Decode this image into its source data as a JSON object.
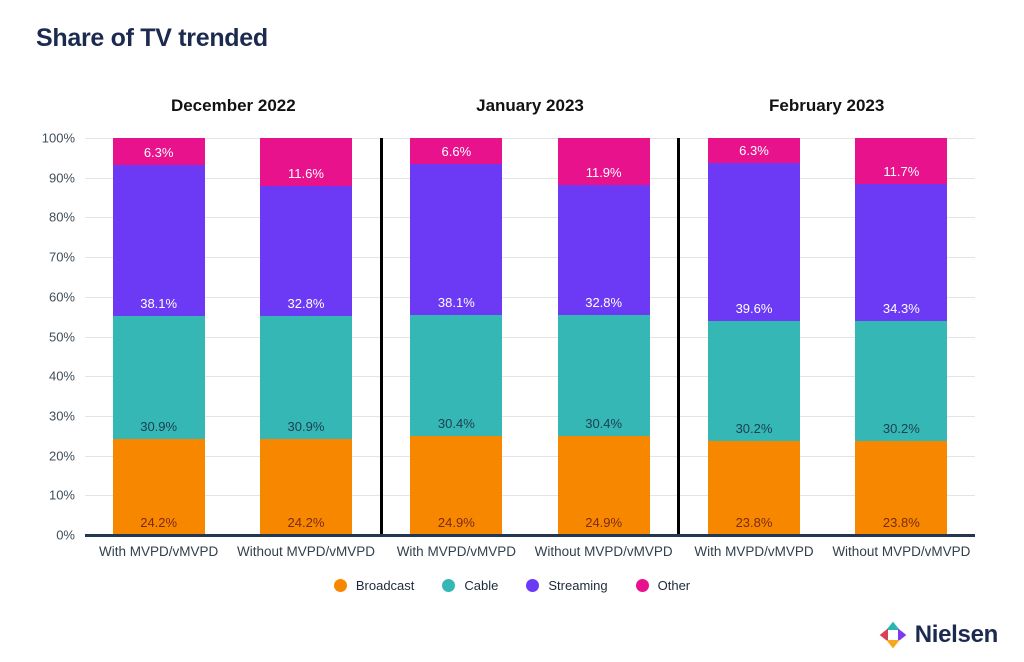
{
  "page": {
    "title": "Share of TV trended"
  },
  "chart_data": {
    "type": "bar",
    "stacked": true,
    "orientation": "vertical",
    "ylim": [
      0,
      100
    ],
    "y_ticks": [
      "100%",
      "90%",
      "80%",
      "70%",
      "60%",
      "50%",
      "40%",
      "30%",
      "20%",
      "10%",
      "0%"
    ],
    "grid": "horizontal",
    "series": [
      {
        "name": "Broadcast",
        "color": "#F88700",
        "label_color": "#7b2b10"
      },
      {
        "name": "Cable",
        "color": "#35B7B6",
        "label_color": "#1d4050"
      },
      {
        "name": "Streaming",
        "color": "#6C3AF5",
        "label_color": "#ffffff"
      },
      {
        "name": "Other",
        "color": "#E8128D",
        "label_color": "#ffffff"
      }
    ],
    "groups": [
      {
        "title": "December 2022",
        "bars": [
          {
            "category": "With MVPD/vMVPD",
            "values": [
              24.2,
              30.9,
              38.1,
              6.3
            ]
          },
          {
            "category": "Without MVPD/vMVPD",
            "values": [
              24.2,
              30.9,
              32.8,
              11.6
            ]
          }
        ]
      },
      {
        "title": "January 2023",
        "bars": [
          {
            "category": "With MVPD/vMVPD",
            "values": [
              24.9,
              30.4,
              38.1,
              6.6
            ]
          },
          {
            "category": "Without MVPD/vMVPD",
            "values": [
              24.9,
              30.4,
              32.8,
              11.9
            ]
          }
        ]
      },
      {
        "title": "February 2023",
        "bars": [
          {
            "category": "With MVPD/vMVPD",
            "values": [
              23.8,
              30.2,
              39.6,
              6.3
            ]
          },
          {
            "category": "Without MVPD/vMVPD",
            "values": [
              23.8,
              30.2,
              34.3,
              11.7
            ]
          }
        ]
      }
    ]
  },
  "legend": {
    "items": [
      {
        "label": "Broadcast",
        "color": "#F88700"
      },
      {
        "label": "Cable",
        "color": "#35B7B6"
      },
      {
        "label": "Streaming",
        "color": "#6C3AF5"
      },
      {
        "label": "Other",
        "color": "#E8128D"
      }
    ]
  },
  "footer": {
    "brand": "Nielsen",
    "logo_colors": {
      "red": "#DB4056",
      "teal": "#2BB5B2",
      "purple": "#7C3BF2",
      "yellow": "#F5A81C"
    }
  }
}
